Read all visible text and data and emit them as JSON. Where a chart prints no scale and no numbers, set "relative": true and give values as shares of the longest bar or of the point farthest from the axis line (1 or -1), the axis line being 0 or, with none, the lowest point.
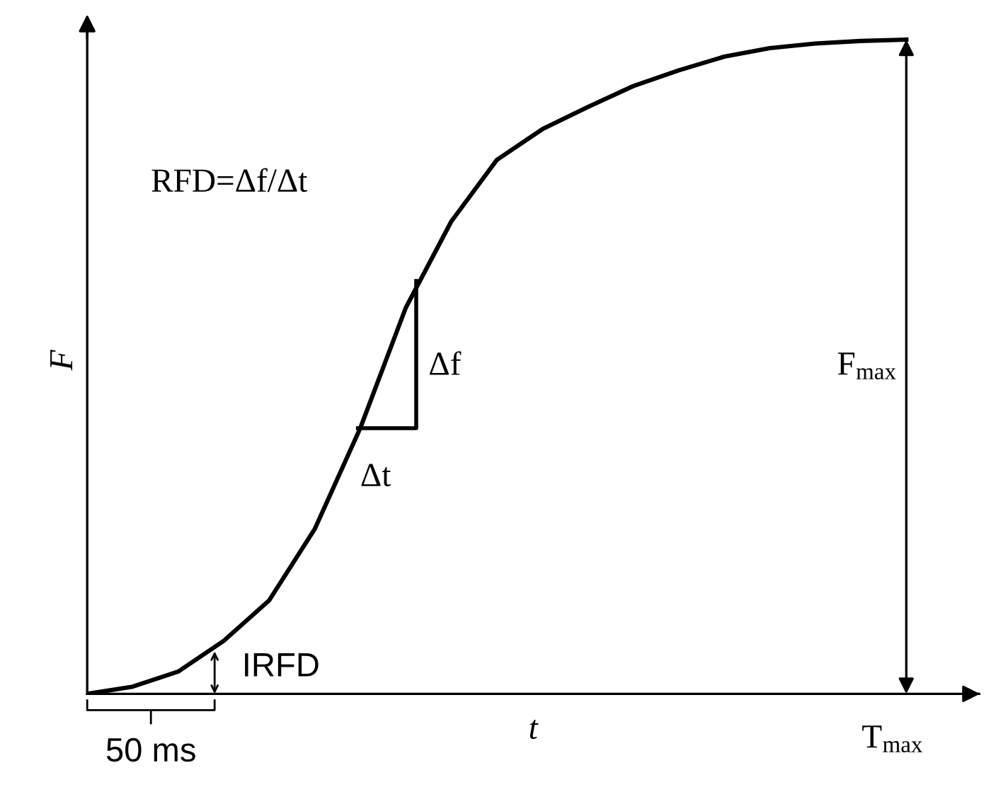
{
  "chart_data": {
    "type": "line",
    "relative": true,
    "xlabel": "t",
    "ylabel": "F",
    "color": "#000000",
    "categories": [
      null,
      null,
      null,
      null,
      null,
      null,
      null,
      null,
      null,
      null,
      null,
      null,
      null,
      null,
      null,
      null,
      null,
      null,
      null
    ],
    "values": [
      0,
      0.011,
      0.034,
      0.081,
      0.143,
      0.252,
      0.406,
      0.59,
      0.722,
      0.816,
      0.863,
      0.897,
      0.929,
      0.953,
      0.974,
      0.987,
      0.994,
      0.998,
      1
    ],
    "annotations": [
      "RFD=Δf/Δt",
      "Δf",
      "Δt",
      "F$_{max}$",
      "IRFD",
      "50 ms",
      "T$_{max}$"
    ]
  }
}
